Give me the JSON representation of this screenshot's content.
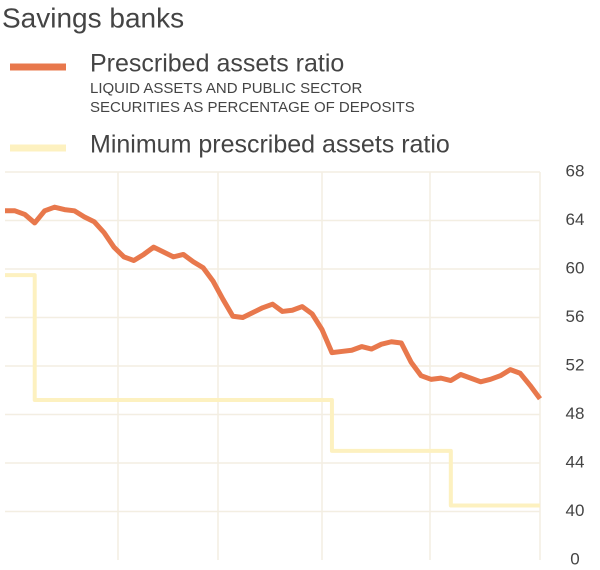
{
  "chart_data": {
    "type": "line",
    "title": "Savings banks",
    "series": [
      {
        "name": "Prescribed assets ratio",
        "description": [
          "LIQUID ASSETS AND PUBLIC SECTOR",
          "SECURITIES AS PERCENTAGE OF DEPOSITS"
        ],
        "color": "#e8784c",
        "values": [
          64.8,
          64.8,
          64.5,
          63.8,
          64.8,
          65.1,
          64.9,
          64.8,
          64.3,
          63.9,
          63,
          61.8,
          61,
          60.7,
          61.2,
          61.8,
          61.4,
          61,
          61.2,
          60.6,
          60.1,
          59,
          57.5,
          56.1,
          56,
          56.4,
          56.8,
          57.1,
          56.5,
          56.6,
          56.9,
          56.3,
          55,
          53.1,
          53.2,
          53.3,
          53.6,
          53.4,
          53.8,
          54,
          53.9,
          52.3,
          51.2,
          50.9,
          51,
          50.8,
          51.3,
          51,
          50.7,
          50.9,
          51.2,
          51.7,
          51.4,
          50.4,
          49.3
        ]
      },
      {
        "name": "Minimum prescribed assets ratio",
        "color": "#fdf1c0",
        "step": true,
        "values": [
          59.5,
          59.5,
          59.5,
          49.2,
          49.2,
          49.2,
          49.2,
          49.2,
          49.2,
          49.2,
          49.2,
          49.2,
          49.2,
          49.2,
          49.2,
          49.2,
          49.2,
          49.2,
          49.2,
          49.2,
          49.2,
          49.2,
          49.2,
          49.2,
          49.2,
          49.2,
          49.2,
          49.2,
          49.2,
          49.2,
          49.2,
          49.2,
          49.2,
          45,
          45,
          45,
          45,
          45,
          45,
          45,
          45,
          45,
          45,
          45,
          45,
          40.5,
          40.5,
          40.5,
          40.5,
          40.5,
          40.5,
          40.5,
          40.5,
          40.5,
          40.5
        ]
      }
    ],
    "ylim": [
      0,
      68
    ],
    "y_break": 36,
    "yticks": [
      0,
      40,
      44,
      48,
      52,
      56,
      60,
      64,
      68
    ],
    "grid": true
  }
}
